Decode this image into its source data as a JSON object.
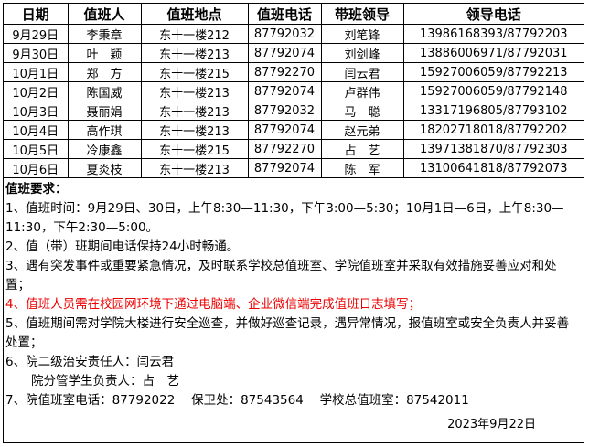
{
  "table": {
    "header": [
      "日期",
      "值班人",
      "值班地点",
      "值班电话",
      "带班领导",
      "领导电话"
    ],
    "rows": [
      [
        "9月29日",
        "李秉章",
        "东十一楼212",
        "87792032",
        "刘笔锋",
        "13986168393/87792203"
      ],
      [
        "9月30日",
        "叶　颖",
        "东十一楼213",
        "87792074",
        "刘剑峰",
        "13886006971/87792031"
      ],
      [
        "10月1日",
        "郑　方",
        "东十一楼215",
        "87792270",
        "闫云君",
        "15927006059/87792213"
      ],
      [
        "10月2日",
        "陈国威",
        "东十一楼213",
        "87792074",
        "卢群伟",
        "15927006059/87792148"
      ],
      [
        "10月3日",
        "聂丽娟",
        "东十一楼213",
        "87792032",
        "马　聪",
        "13317196805/87793102"
      ],
      [
        "10月4日",
        "高作琪",
        "东十一楼213",
        "87792074",
        "赵元弟",
        "18202718018/87792202"
      ],
      [
        "10月5日",
        "冷康鑫",
        "东十一楼215",
        "87792270",
        "占　艺",
        "13971381870/87792303"
      ],
      [
        "10月6日",
        "夏炎枝",
        "东十一楼213",
        "87792074",
        "陈　军",
        "13100641818/87792073"
      ]
    ]
  },
  "notes": {
    "title": "值班要求：",
    "items": [
      "1、值班时间：9月29日、30日，上午8:30—11:30，下午3:00—5:30；10月1日—6日，上午8:30—11:30，下午2:30—5:00。",
      "2、值（带）班期间电话保持24小时畅通。",
      "3、遇有突发事件或重要紧急情况，及时联系学校总值班室、学院值班室并采取有效措施妥善应对和处置；",
      "4、值班人员需在校园网环境下通过电脑端、企业微信端完成值班日志填写；",
      "5、值班期间需对学院大楼进行安全巡查，并做好巡查记录，遇异常情况，报值班室或安全负责人并妥善处置；",
      "6、院二级治安责任人：闫云君",
      "院分管学生负责人：占　艺",
      "7、院值班室电话：87792022　 保卫处：87543564　 学校总值班室：87542011"
    ],
    "date": "2023年9月22日"
  }
}
